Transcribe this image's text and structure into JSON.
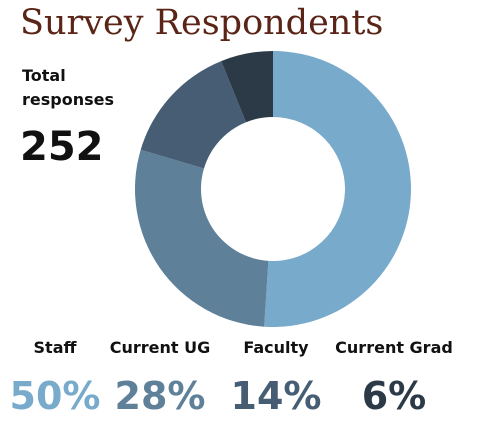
{
  "colors": {
    "title": "#5a2416",
    "text": "#111111",
    "staff": "#78aacb",
    "current_ug": "#5f8099",
    "faculty": "#465d74",
    "current_grad": "#2c3a47"
  },
  "chart_data": {
    "type": "pie",
    "title": "Survey Respondents",
    "total_label": "Total responses",
    "total_value": "252",
    "slices": [
      {
        "label": "Staff",
        "value": 50,
        "display": "50%",
        "color": "#78aacb"
      },
      {
        "label": "Current UG",
        "value": 28,
        "display": "28%",
        "color": "#5f8099"
      },
      {
        "label": "Faculty",
        "value": 14,
        "display": "14%",
        "color": "#465d74"
      },
      {
        "label": "Current Grad",
        "value": 6,
        "display": "6%",
        "color": "#2c3a47"
      }
    ]
  }
}
